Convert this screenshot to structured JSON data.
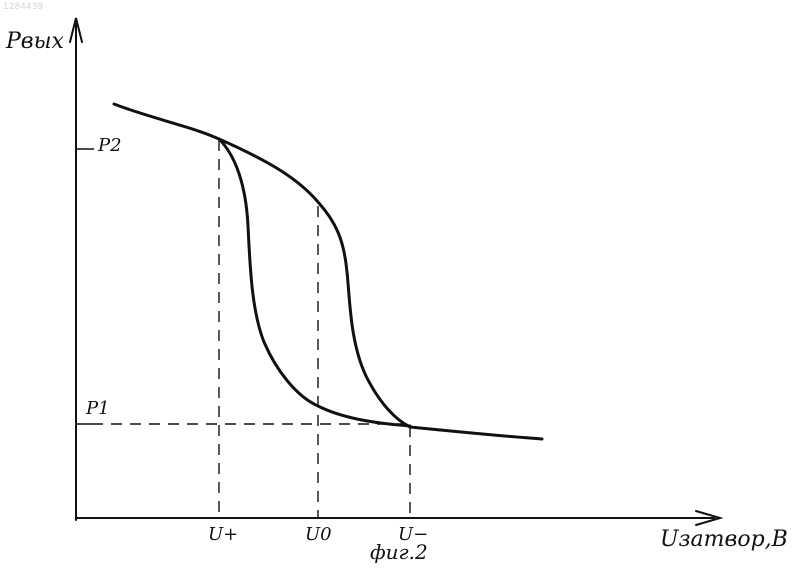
{
  "watermark": "1284439",
  "axes": {
    "y_label": "Pвых",
    "x_label": "Uзатвор,В"
  },
  "y_ticks": [
    "P2",
    "P1"
  ],
  "x_ticks": [
    "U+",
    "U0",
    "U−"
  ],
  "caption": "фиг.2",
  "colors": {
    "ink": "#111111",
    "paper": "#ffffff"
  }
}
